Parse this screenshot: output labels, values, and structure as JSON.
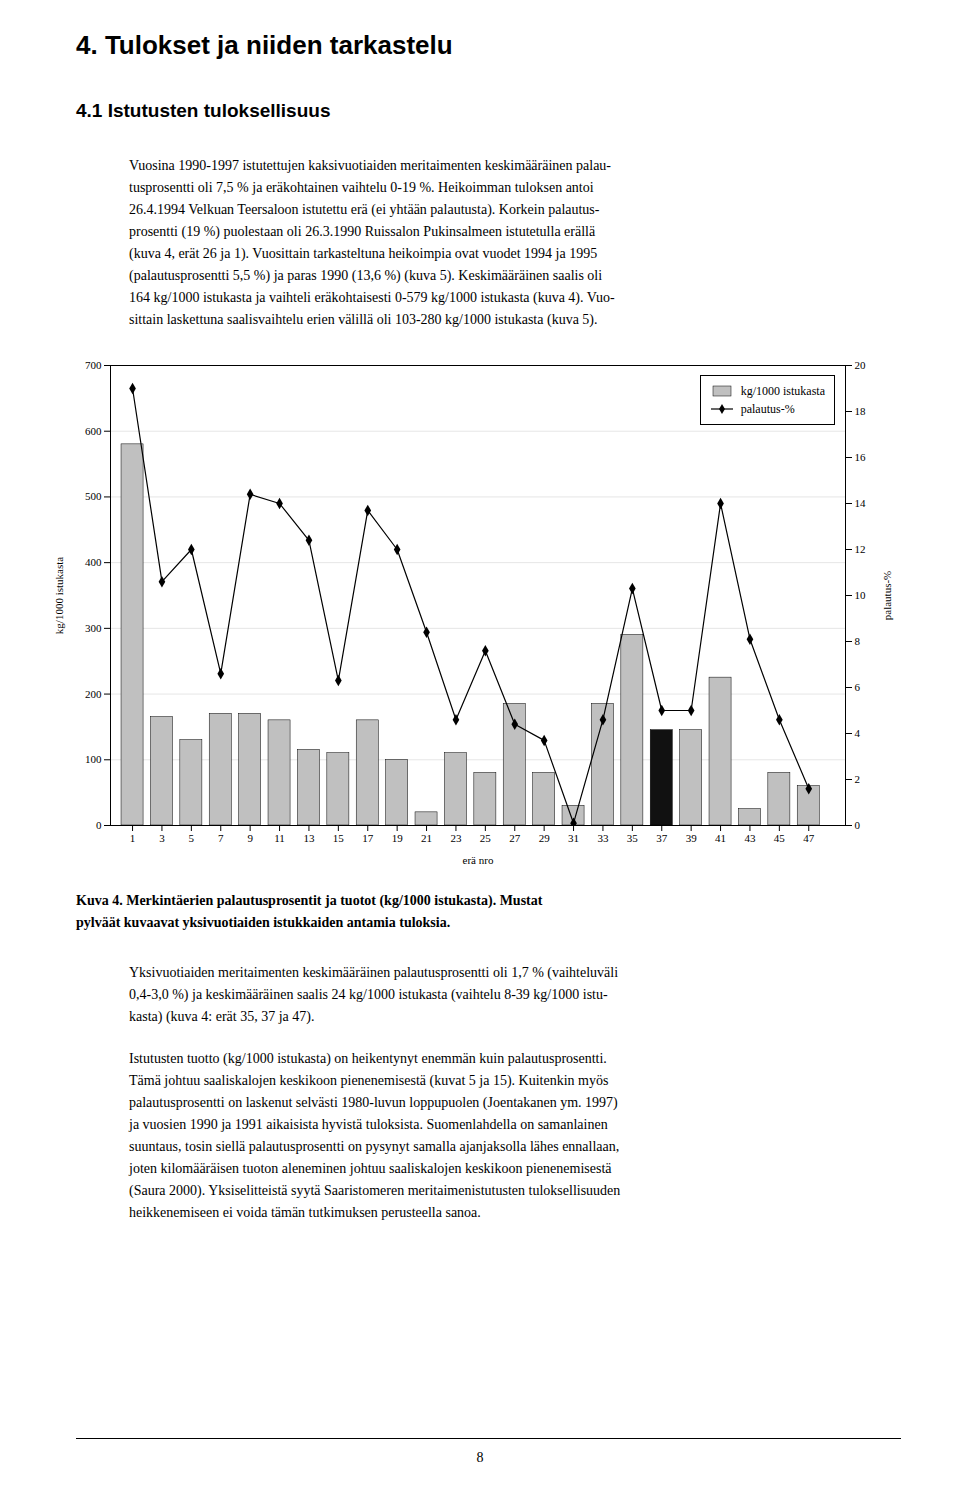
{
  "title": "4. Tulokset ja niiden tarkastelu",
  "subtitle": "4.1 Istutusten tuloksellisuus",
  "text_before": [
    [
      "Vuosina 1990-1997 istutettujen kaksivuotiaiden meritaimenten keskimääräinen palau-",
      "tusprosentti oli 7,5 % ja eräkohtainen vaihtelu 0-19 %. Heikoimman tuloksen antoi",
      "26.4.1994 Velkuan Teersaloon istutettu erä (ei yhtään palautusta). Korkein palautus-",
      "prosentti (19 %) puolestaan oli 26.3.1990 Ruissalon Pukinsalmeen istutetulla erällä",
      "(kuva 4, erät 26 ja 1). Vuosittain tarkasteltuna heikoimpia ovat vuodet 1994 ja 1995",
      "(palautusprosentti 5,5 %) ja paras 1990 (13,6 %) (kuva 5). Keskimääräinen saalis oli",
      "164 kg/1000 istukasta ja vaihteli eräkohtaisesti 0-579 kg/1000 istukasta (kuva 4). Vuo-",
      "sittain laskettuna saalisvaihtelu erien välillä oli 103-280 kg/1000 istukasta (kuva 5)."
    ]
  ],
  "caption": [
    "Kuva 4. Merkintäerien palautusprosentit ja tuotot (kg/1000 istukasta). Mustat",
    "pylväät kuvaavat yksivuotiaiden istukkaiden antamia tuloksia."
  ],
  "text_after": [
    [
      "Yksivuotiaiden meritaimenten keskimääräinen palautusprosentti oli 1,7 % (vaihteluväli",
      "0,4-3,0 %) ja keskimääräinen saalis 24 kg/1000 istukasta (vaihtelu 8-39 kg/1000 istu-",
      "kasta) (kuva 4: erät 35, 37 ja 47)."
    ],
    [
      "Istutusten tuotto (kg/1000 istukasta) on heikentynyt enemmän kuin palautusprosentti.",
      "Tämä johtuu saaliskalojen keskikoon pienenemisestä (kuvat 5 ja 15). Kuitenkin myös",
      "palautusprosentti on laskenut selvästi 1980-luvun loppupuolen (Joentakanen ym. 1997)",
      "ja vuosien 1990 ja 1991 aikaisista hyvistä tuloksista. Suomenlahdella on samanlainen",
      "suuntaus, tosin siellä palautusprosentti on pysynyt samalla ajanjaksolla lähes ennallaan,",
      "joten kilomääräisen tuoton aleneminen johtuu saaliskalojen keskikoon pienenemisestä",
      "(Saura 2000). Yksiselitteistä syytä Saaristomeren meritaimenistutusten tuloksellisuuden",
      "heikkenemiseen ei voida tämän tutkimuksen perusteella sanoa."
    ]
  ],
  "page_number": "8",
  "chart_data": {
    "type": "bar",
    "x": [
      1,
      3,
      5,
      7,
      9,
      11,
      13,
      15,
      17,
      19,
      21,
      23,
      25,
      27,
      29,
      31,
      33,
      35,
      37,
      39,
      41,
      43,
      45,
      47
    ],
    "xlim": [
      -0.5,
      49.5
    ],
    "xticks": [
      1,
      3,
      5,
      7,
      9,
      11,
      13,
      15,
      17,
      19,
      21,
      23,
      25,
      27,
      29,
      31,
      33,
      35,
      37,
      39,
      41,
      43,
      45,
      47
    ],
    "xlabel": "erä nro",
    "ylabel": "kg/1000 istukasta",
    "y2label": "palautus-%",
    "ylim": [
      0,
      700
    ],
    "yticks": [
      0,
      100,
      200,
      300,
      400,
      500,
      600,
      700
    ],
    "y2lim": [
      0,
      20
    ],
    "y2ticks": [
      0,
      2,
      4,
      6,
      8,
      10,
      12,
      14,
      16,
      18,
      20
    ],
    "grid": true,
    "legend": "upper right",
    "series": [
      {
        "name": "kg/1000 istukasta",
        "type": "bar",
        "color": "#c0c0c0",
        "colors": [
          "#c0c0c0",
          "#c0c0c0",
          "#c0c0c0",
          "#c0c0c0",
          "#c0c0c0",
          "#c0c0c0",
          "#c0c0c0",
          "#c0c0c0",
          "#c0c0c0",
          "#c0c0c0",
          "#c0c0c0",
          "#c0c0c0",
          "#c0c0c0",
          "#c0c0c0",
          "#c0c0c0",
          "#c0c0c0",
          "#c0c0c0",
          "#c0c0c0",
          "#111111",
          "#c0c0c0",
          "#c0c0c0",
          "#c0c0c0",
          "#c0c0c0",
          "#c0c0c0"
        ],
        "values": [
          580,
          165,
          130,
          170,
          170,
          160,
          115,
          110,
          160,
          100,
          20,
          110,
          80,
          185,
          80,
          30,
          185,
          290,
          145,
          145,
          225,
          25,
          80,
          60
        ]
      },
      {
        "name": "palautus-%",
        "type": "line",
        "axis": "y2",
        "color": "black",
        "marker": "diamond",
        "line_style": "solid",
        "values": [
          19.0,
          10.6,
          12.0,
          6.6,
          14.4,
          14.0,
          12.4,
          6.3,
          13.7,
          12.0,
          8.4,
          4.6,
          7.6,
          4.4,
          3.7,
          0.1,
          4.6,
          10.3,
          5.0,
          5.0,
          14.0,
          8.1,
          4.6,
          1.6
        ]
      }
    ]
  }
}
